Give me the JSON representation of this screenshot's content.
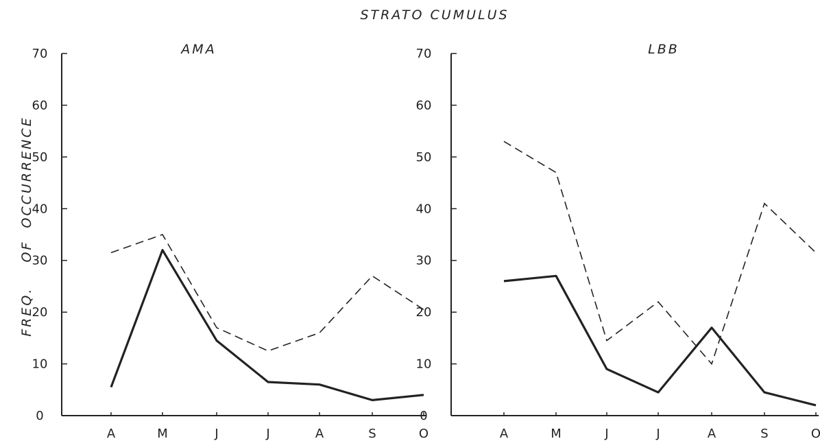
{
  "chart_data": {
    "title": "STRATO CUMULUS",
    "ylabel": "FREQ.    OF  OCCURRENCE",
    "panels": [
      {
        "type": "line",
        "title": "AMA",
        "categories": [
          "A",
          "M",
          "J",
          "J",
          "A",
          "S",
          "O"
        ],
        "ylim": [
          0,
          70
        ],
        "yticks": [
          "0",
          "10",
          "20",
          "30",
          "40",
          "50",
          "60",
          "70"
        ],
        "series": [
          {
            "style": "solid",
            "values": [
              5.5,
              32,
              14.5,
              6.5,
              6,
              3,
              4
            ]
          },
          {
            "style": "dashed",
            "values": [
              31.5,
              35,
              17,
              12.5,
              16,
              27,
              20.5
            ]
          }
        ]
      },
      {
        "type": "line",
        "title": "LBB",
        "categories": [
          "A",
          "M",
          "J",
          "J",
          "A",
          "S",
          "O"
        ],
        "ylim": [
          0,
          70
        ],
        "yticks": [
          "0",
          "10",
          "20",
          "30",
          "40",
          "50",
          "60",
          "70"
        ],
        "series": [
          {
            "style": "solid",
            "values": [
              26,
              27,
              9,
              4.5,
              17,
              4.5,
              2
            ]
          },
          {
            "style": "dashed",
            "values": [
              53,
              47,
              14.5,
              22,
              10,
              41,
              31.5
            ]
          }
        ]
      }
    ]
  }
}
